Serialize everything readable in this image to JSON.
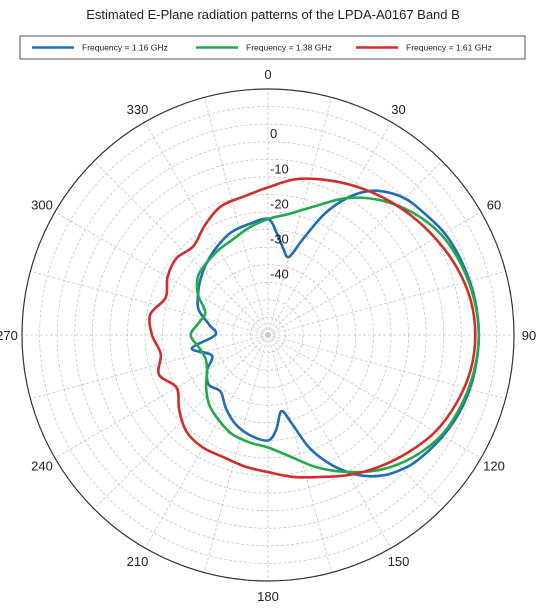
{
  "chart_data": {
    "type": "line",
    "subtype": "polar",
    "title": "Estimated E-Plane radiation patterns of the LPDA-A0167 Band B",
    "xlabel": "",
    "ylabel": "",
    "angle_ticks": [
      "0",
      "30",
      "60",
      "90",
      "120",
      "150",
      "180",
      "210",
      "240",
      "270",
      "300",
      "330"
    ],
    "angle_tick_values": [
      0,
      30,
      60,
      90,
      120,
      150,
      180,
      210,
      240,
      270,
      300,
      330
    ],
    "radial_ticks": [
      "0",
      "-10",
      "-20",
      "-30",
      "-40"
    ],
    "radial_tick_values": [
      0,
      -10,
      -20,
      -30,
      -40
    ],
    "radial_range": [
      -60,
      10
    ],
    "angular_grid_step_deg": 15,
    "radial_grid_step": 5,
    "grid": true,
    "legend_position": "top",
    "series": [
      {
        "name": "Frequency = 1.16 GHz",
        "color": "#1f6db3",
        "angles": [
          0,
          5,
          10,
          15,
          20,
          25,
          30,
          35,
          40,
          45,
          50,
          60,
          70,
          80,
          90,
          100,
          110,
          120,
          130,
          135,
          140,
          145,
          150,
          155,
          160,
          165,
          170,
          175,
          180,
          190,
          200,
          210,
          220,
          230,
          240,
          250,
          260,
          270,
          280,
          290,
          300,
          310,
          320,
          330,
          340,
          350,
          360
        ],
        "values": [
          -27,
          -31,
          -35,
          -37,
          -31,
          -22,
          -15,
          -10,
          -7,
          -5,
          -4,
          -2,
          -1,
          -0.3,
          0,
          -0.3,
          -1,
          -2.5,
          -4.5,
          -6,
          -8,
          -11,
          -15,
          -20,
          -26,
          -34,
          -38,
          -33,
          -30,
          -31,
          -33,
          -36,
          -39,
          -38,
          -40,
          -43,
          -38,
          -45,
          -43,
          -39,
          -37,
          -35,
          -33,
          -31,
          -29,
          -28,
          -27
        ]
      },
      {
        "name": "Frequency = 1.38 GHz",
        "color": "#23a84c",
        "angles": [
          0,
          10,
          20,
          30,
          40,
          50,
          60,
          70,
          80,
          90,
          100,
          110,
          120,
          130,
          140,
          150,
          160,
          170,
          180,
          190,
          200,
          210,
          220,
          230,
          240,
          250,
          260,
          270,
          280,
          290,
          300,
          310,
          320,
          330,
          340,
          350,
          360
        ],
        "values": [
          -27,
          -25,
          -21,
          -15,
          -10,
          -6,
          -3,
          -1.5,
          -0.5,
          0,
          -0.5,
          -1.5,
          -3,
          -6,
          -10,
          -15,
          -20,
          -25,
          -28,
          -29,
          -30,
          -32,
          -34,
          -37,
          -40,
          -41,
          -40,
          -38,
          -40,
          -41,
          -37,
          -34,
          -33,
          -32,
          -31,
          -29,
          -27
        ]
      },
      {
        "name": "Frequency = 1.61 GHz",
        "color": "#d42b2b",
        "angles": [
          0,
          10,
          20,
          30,
          40,
          50,
          60,
          70,
          80,
          90,
          100,
          110,
          120,
          130,
          140,
          150,
          160,
          170,
          180,
          190,
          200,
          210,
          220,
          230,
          240,
          250,
          260,
          270,
          280,
          290,
          300,
          310,
          320,
          330,
          340,
          350,
          360
        ],
        "values": [
          -18,
          -15,
          -13,
          -11,
          -9,
          -7,
          -5,
          -3,
          -1.5,
          -1,
          -1.5,
          -3,
          -5,
          -8,
          -11,
          -14,
          -17,
          -19,
          -21,
          -22,
          -23,
          -23,
          -24,
          -27,
          -30,
          -27,
          -29,
          -27,
          -26,
          -29,
          -27,
          -26,
          -27,
          -24,
          -21,
          -20,
          -18
        ]
      }
    ]
  }
}
